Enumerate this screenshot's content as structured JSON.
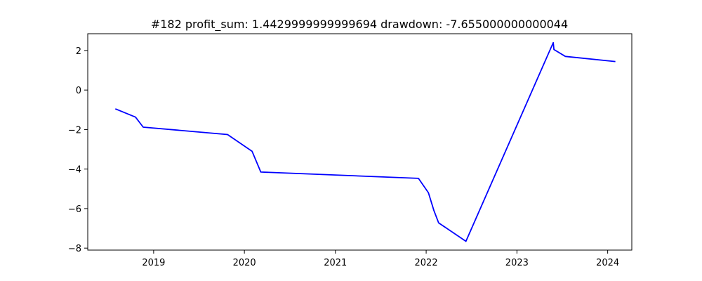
{
  "chart_data": {
    "type": "line",
    "title": "#182   profit_sum: 1.4429999999999694 drawdown: -7.655000000000044",
    "xlabel": "",
    "ylabel": "",
    "x_axis_type": "date",
    "xlim": [
      "2018-04-11",
      "2024-04-07"
    ],
    "ylim": [
      -8.1,
      2.85
    ],
    "grid": false,
    "legend": "none",
    "line_color": "#0000ff",
    "x_ticks": [
      "2019-01-01",
      "2020-01-01",
      "2021-01-01",
      "2022-01-01",
      "2023-01-01",
      "2024-01-01"
    ],
    "x_tick_labels": [
      "2019",
      "2020",
      "2021",
      "2022",
      "2023",
      "2024"
    ],
    "y_ticks": [
      -8,
      -6,
      -4,
      -2,
      0,
      2
    ],
    "y_tick_labels": [
      "−8",
      "−6",
      "−4",
      "−2",
      "0",
      "2"
    ],
    "series": [
      {
        "x": [
          "2018-07-31",
          "2018-10-20",
          "2018-11-20",
          "2019-10-25",
          "2020-02-01",
          "2020-02-16",
          "2020-03-07",
          "2021-12-01",
          "2022-01-10",
          "2022-02-01",
          "2022-02-20",
          "2022-06-10",
          "2023-05-27",
          "2023-05-30",
          "2023-07-15",
          "2024-02-01"
        ],
        "y": [
          -0.95,
          -1.37,
          -1.88,
          -2.25,
          -3.1,
          -3.55,
          -4.15,
          -4.47,
          -5.2,
          -6.1,
          -6.72,
          -7.655,
          2.4,
          2.05,
          1.7,
          1.443
        ]
      }
    ]
  }
}
